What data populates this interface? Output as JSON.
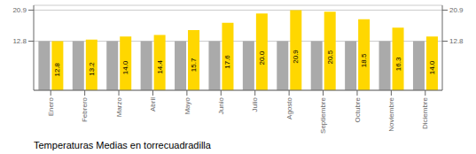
{
  "chart_data": {
    "type": "bar",
    "title": "Temperaturas Medias en torrecuadradilla",
    "categories": [
      "Enero",
      "Febrero",
      "Marzo",
      "Abril",
      "Mayo",
      "Junio",
      "Julio",
      "Agosto",
      "Septiembre",
      "Octubre",
      "Noviembre",
      "Diciembre"
    ],
    "series": [
      {
        "color": "#AAAAAA",
        "values": [
          12.8,
          12.8,
          12.8,
          12.8,
          12.8,
          12.8,
          12.8,
          12.8,
          12.8,
          12.8,
          12.8,
          12.8
        ]
      },
      {
        "color": "#FFD700",
        "values": [
          12.8,
          13.2,
          14.0,
          14.4,
          15.7,
          17.6,
          20.0,
          20.9,
          20.5,
          18.5,
          16.3,
          14.0
        ],
        "data_labels": true,
        "value_labels": [
          "12.8",
          "13.2",
          "14.0",
          "14.4",
          "15.7",
          "17.6",
          "20.0",
          "20.9",
          "20.5",
          "18.5",
          "16.3",
          "14.0"
        ]
      }
    ],
    "ylim": [
      0,
      22.154
    ],
    "yticks": [
      12.8,
      20.9
    ],
    "y2lim": [
      0,
      22.154
    ],
    "y2ticks": [
      12.8,
      20.9
    ],
    "grid": true
  }
}
